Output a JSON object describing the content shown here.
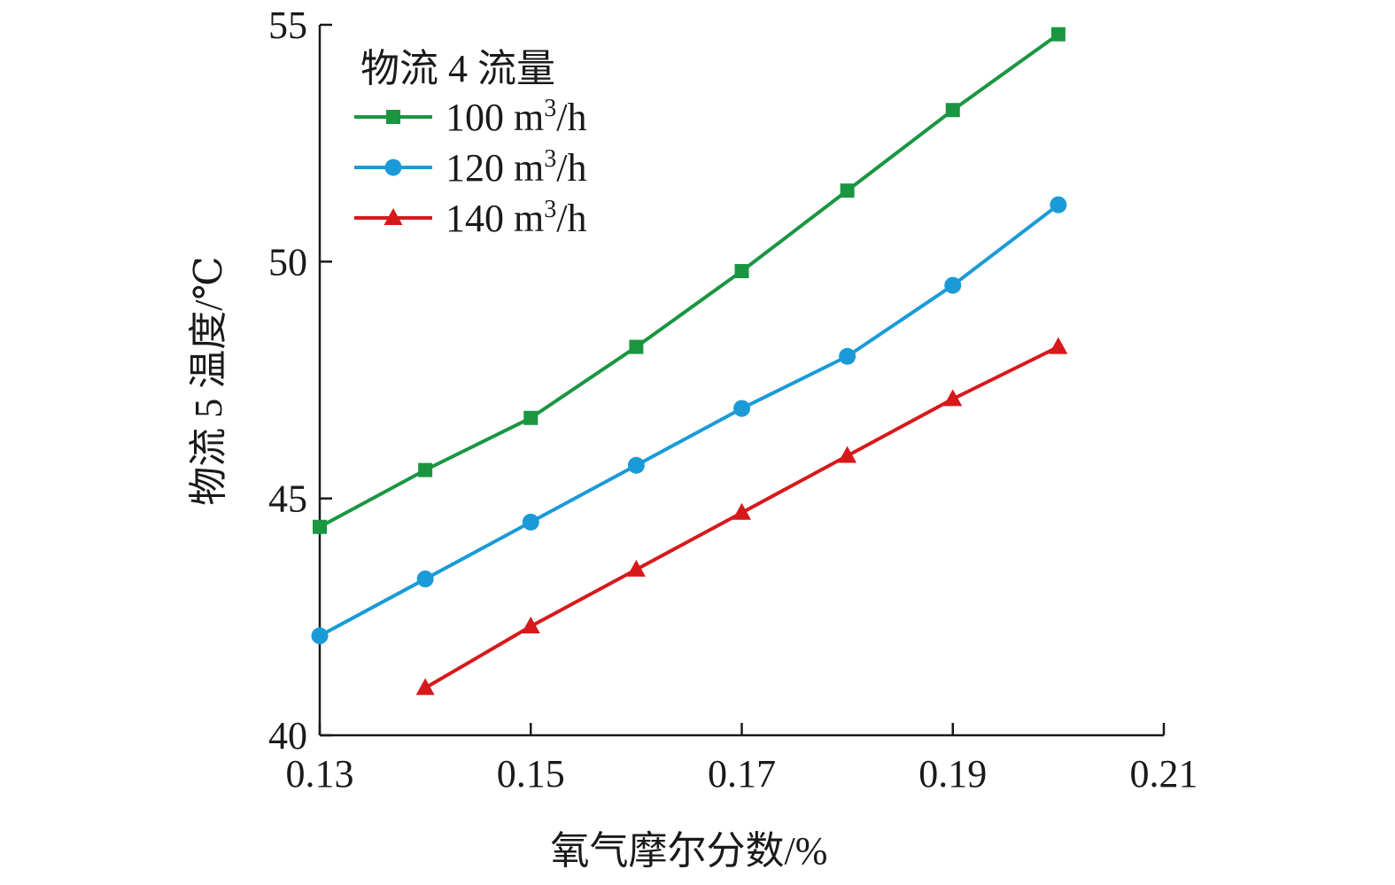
{
  "chart_data": {
    "type": "line",
    "xlabel": "氧气摩尔分数/%",
    "ylabel": "物流 5 温度/℃",
    "xlim": [
      0.13,
      0.21
    ],
    "ylim": [
      40,
      55
    ],
    "x_ticks": [
      "0.13",
      "0.15",
      "0.17",
      "0.19",
      "0.21"
    ],
    "y_ticks": [
      "40",
      "45",
      "50",
      "55"
    ],
    "grid": false,
    "legend": {
      "title": "物流 4 流量",
      "placement": "top-left"
    },
    "series": [
      {
        "name_prefix": "100 m",
        "name_sup": "3",
        "name_suffix": "/h",
        "color": "#1a9641",
        "marker": "square",
        "x": [
          0.13,
          0.14,
          0.15,
          0.16,
          0.17,
          0.18,
          0.19,
          0.2
        ],
        "y": [
          44.4,
          45.6,
          46.7,
          48.2,
          49.8,
          51.5,
          53.2,
          54.8
        ]
      },
      {
        "name_prefix": "120 m",
        "name_sup": "3",
        "name_suffix": "/h",
        "color": "#1a9bd7",
        "marker": "circle",
        "x": [
          0.13,
          0.14,
          0.15,
          0.16,
          0.17,
          0.18,
          0.19,
          0.2
        ],
        "y": [
          42.1,
          43.3,
          44.5,
          45.7,
          46.9,
          48.0,
          49.5,
          51.2
        ]
      },
      {
        "name_prefix": "140 m",
        "name_sup": "3",
        "name_suffix": "/h",
        "color": "#d7191c",
        "marker": "triangle",
        "x": [
          0.14,
          0.15,
          0.16,
          0.17,
          0.18,
          0.19,
          0.2
        ],
        "y": [
          41.0,
          42.3,
          43.5,
          44.7,
          45.9,
          47.1,
          48.2
        ]
      }
    ]
  }
}
